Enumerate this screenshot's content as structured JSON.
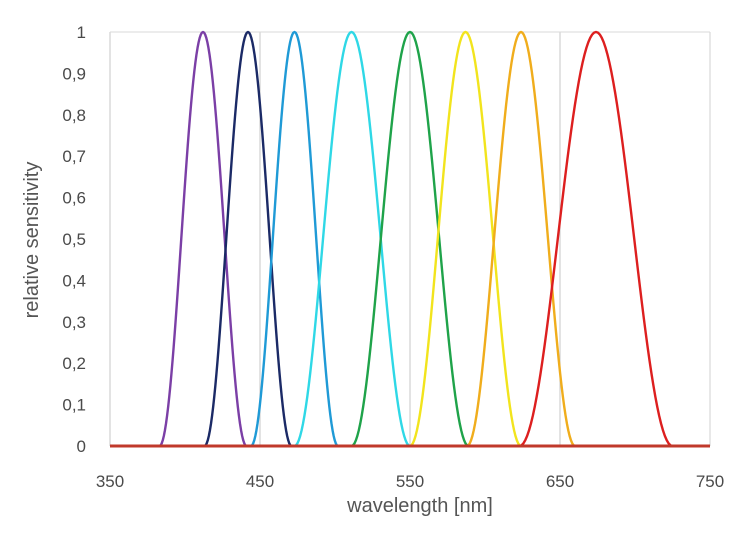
{
  "chart_data": {
    "type": "line",
    "title": "",
    "xlabel": "wavelength [nm]",
    "ylabel": "relative sensitivity",
    "xlim": [
      350,
      750
    ],
    "ylim": [
      0,
      1
    ],
    "x_ticks": [
      "350",
      "450",
      "550",
      "650",
      "750"
    ],
    "y_ticks": [
      "0",
      "0,1",
      "0,2",
      "0,3",
      "0,4",
      "0,5",
      "0,6",
      "0,7",
      "0,8",
      "0,9",
      "1"
    ],
    "grid": "vertical",
    "legend": "none",
    "baseline_color": "#c0392b",
    "series": [
      {
        "color": "#7b3fa6",
        "start": 383,
        "peak": 412,
        "end": 441
      },
      {
        "color": "#1b2a66",
        "start": 413,
        "peak": 442,
        "end": 471
      },
      {
        "color": "#1f9ad6",
        "start": 444,
        "peak": 473,
        "end": 502
      },
      {
        "color": "#2fd8e6",
        "start": 473,
        "peak": 511,
        "end": 550
      },
      {
        "color": "#1fa34a",
        "start": 511,
        "peak": 550,
        "end": 589
      },
      {
        "color": "#f2e41d",
        "start": 550,
        "peak": 587,
        "end": 624
      },
      {
        "color": "#f0ad1c",
        "start": 588,
        "peak": 624,
        "end": 660
      },
      {
        "color": "#dd1f1f",
        "start": 623,
        "peak": 674,
        "end": 725
      }
    ]
  }
}
